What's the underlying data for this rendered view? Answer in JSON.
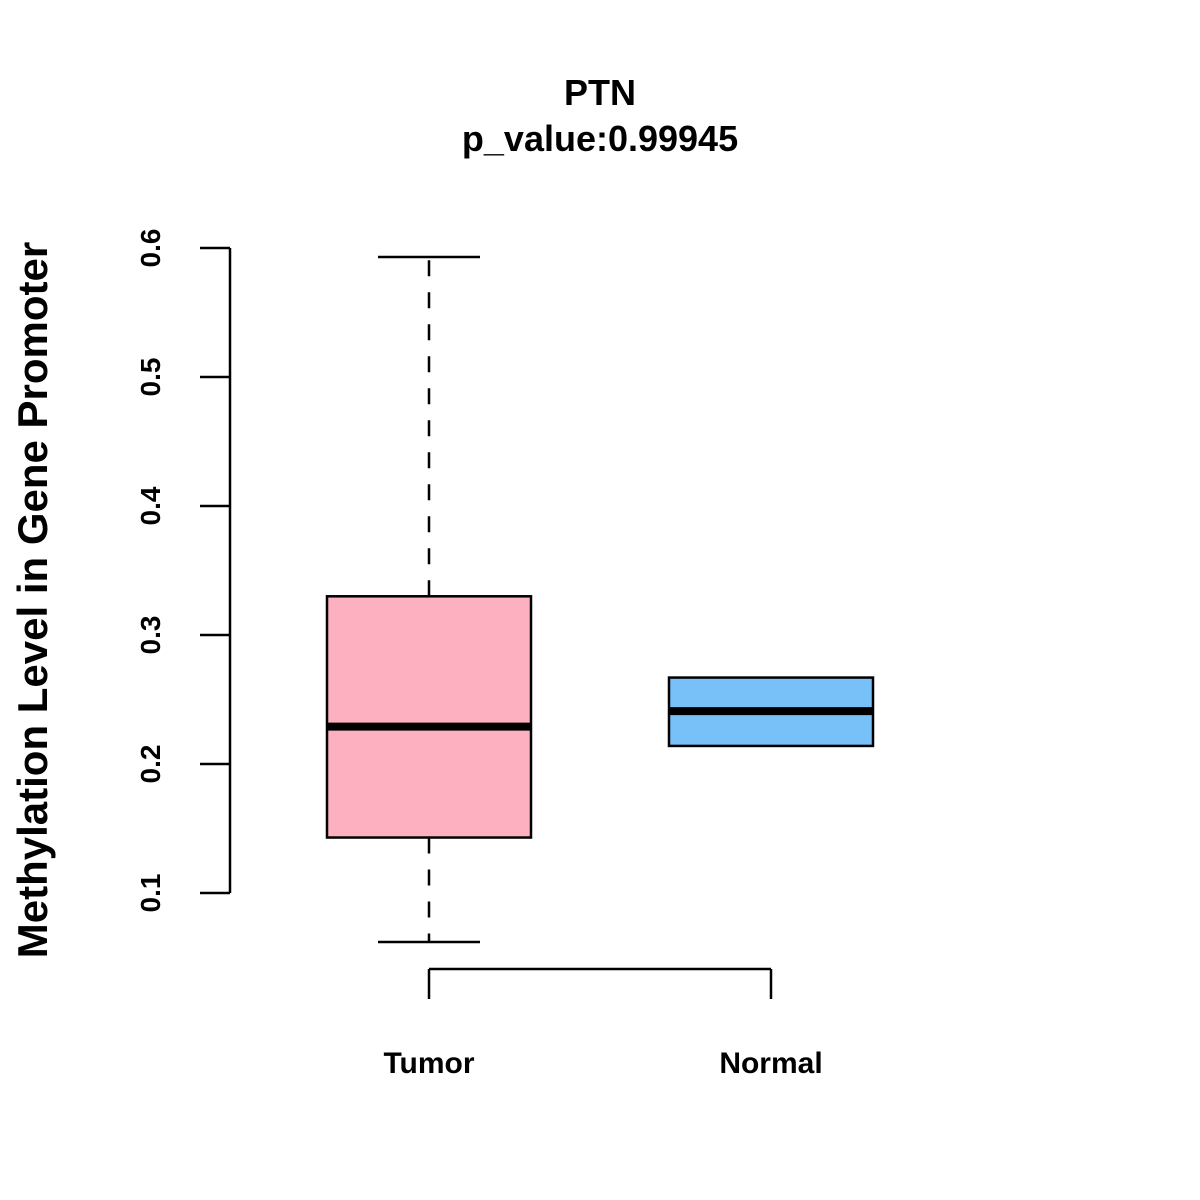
{
  "chart_data": {
    "type": "boxplot",
    "title": "PTN",
    "subtitle": "p_value:0.99945",
    "ylabel": "Methylation Level in Gene Promoter",
    "xlabel": "",
    "ylim": [
      0.1,
      0.6
    ],
    "yticks": [
      0.1,
      0.2,
      0.3,
      0.4,
      0.5,
      0.6
    ],
    "ytick_labels": [
      "0.1",
      "0.2",
      "0.3",
      "0.4",
      "0.5",
      "0.6"
    ],
    "categories": [
      "Tumor",
      "Normal"
    ],
    "boxes": [
      {
        "name": "Tumor",
        "whisker_low": 0.062,
        "q1": 0.143,
        "median": 0.229,
        "q3": 0.33,
        "whisker_high": 0.593,
        "color": "#FDB0C0"
      },
      {
        "name": "Normal",
        "whisker_low": 0.214,
        "q1": 0.214,
        "median": 0.241,
        "q3": 0.267,
        "whisker_high": 0.267,
        "color": "#78C0F8"
      }
    ],
    "grid": false,
    "legend": "none"
  }
}
